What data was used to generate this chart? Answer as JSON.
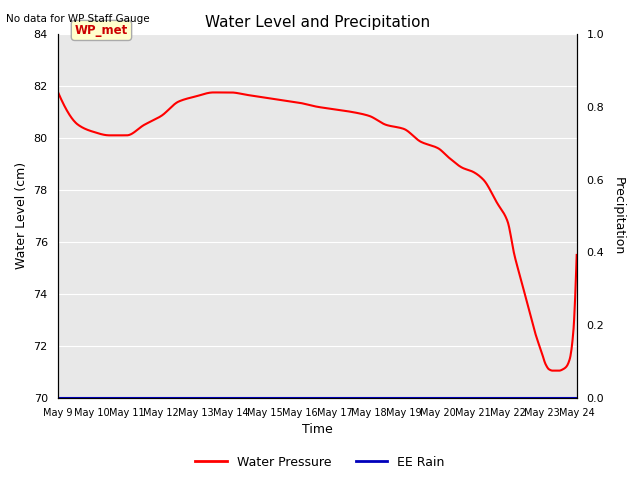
{
  "title": "Water Level and Precipitation",
  "top_left_text": "No data for WP Staff Gauge",
  "ylabel_left": "Water Level (cm)",
  "ylabel_right": "Precipitation",
  "xlabel": "Time",
  "ylim_left": [
    70,
    84
  ],
  "ylim_right": [
    0.0,
    1.0
  ],
  "yticks_left": [
    70,
    72,
    74,
    76,
    78,
    80,
    82,
    84
  ],
  "yticks_right": [
    0.0,
    0.2,
    0.4,
    0.6,
    0.8,
    1.0
  ],
  "xtick_labels": [
    "May 9",
    "May 10",
    "May 11",
    "May 12",
    "May 13",
    "May 14",
    "May 15",
    "May 16",
    "May 17",
    "May 18",
    "May 19",
    "May 20",
    "May 21",
    "May 22",
    "May 23",
    "May 24"
  ],
  "bg_color": "#e8e8e8",
  "annotation_label": "WP_met",
  "annotation_color": "#cc0000",
  "annotation_bg": "#ffffcc",
  "annotation_edge": "#aaaaaa",
  "legend_items": [
    "Water Pressure",
    "EE Rain"
  ],
  "legend_colors": [
    "#ff0000",
    "#0000bb"
  ],
  "wp_x": [
    0,
    0.6,
    1.0,
    1.5,
    2.0,
    2.5,
    3.0,
    3.5,
    4.0,
    4.5,
    5.0,
    5.5,
    6.0,
    6.5,
    7.0,
    7.5,
    8.0,
    8.5,
    9.0,
    9.5,
    10.0,
    10.5,
    11.0,
    11.3,
    11.7,
    12.0,
    12.3,
    12.7,
    13.0,
    13.2,
    13.4,
    13.6,
    13.8,
    14.0,
    14.1,
    14.2,
    14.3,
    14.4,
    14.5,
    14.6,
    14.7,
    14.8,
    14.9,
    15.0
  ],
  "wp_y": [
    81.8,
    80.5,
    80.25,
    80.1,
    80.1,
    80.5,
    80.85,
    81.4,
    81.6,
    81.75,
    81.75,
    81.65,
    81.55,
    81.45,
    81.35,
    81.2,
    81.1,
    81.0,
    80.85,
    80.5,
    80.35,
    79.85,
    79.6,
    79.25,
    78.85,
    78.7,
    78.4,
    77.5,
    76.8,
    75.5,
    74.5,
    73.5,
    72.5,
    71.7,
    71.3,
    71.1,
    71.05,
    71.05,
    71.05,
    71.1,
    71.2,
    71.5,
    72.5,
    75.5
  ]
}
